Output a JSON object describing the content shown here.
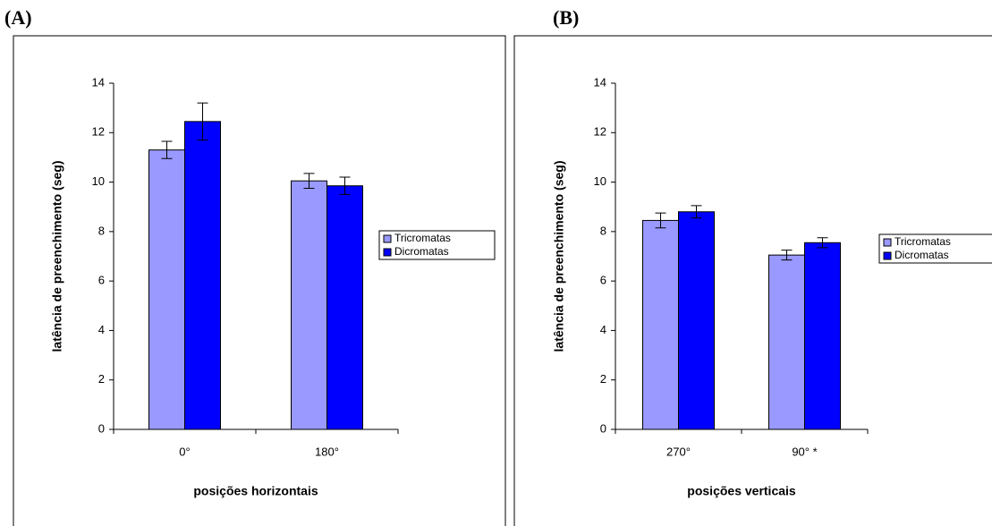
{
  "chart_data": [
    {
      "type": "bar",
      "panel": "(A)",
      "categories": [
        "0°",
        "180°"
      ],
      "xlabel": "posições horizontais",
      "ylabel": "latência de preenchimento (seg)",
      "series": [
        {
          "name": "Tricromatas",
          "color": "#9999ff",
          "values": [
            11.3,
            10.05
          ],
          "errors": [
            0.35,
            0.3
          ]
        },
        {
          "name": "Dicromatas",
          "color": "#0000ff",
          "values": [
            12.45,
            9.85
          ],
          "errors": [
            0.75,
            0.35
          ]
        }
      ],
      "ylim": [
        0,
        14
      ],
      "yticks": [
        0,
        2,
        4,
        6,
        8,
        10,
        12,
        14
      ],
      "legend": "right"
    },
    {
      "type": "bar",
      "panel": "(B)",
      "categories": [
        "270°",
        "90° *"
      ],
      "xlabel": "posições verticais",
      "ylabel": "latência de preenchimento (seg)",
      "series": [
        {
          "name": "Tricromatas",
          "color": "#9999ff",
          "values": [
            8.45,
            7.05
          ],
          "errors": [
            0.3,
            0.2
          ]
        },
        {
          "name": "Dicromatas",
          "color": "#0000ff",
          "values": [
            8.8,
            7.55
          ],
          "errors": [
            0.25,
            0.2
          ]
        }
      ],
      "ylim": [
        0,
        14
      ],
      "yticks": [
        0,
        2,
        4,
        6,
        8,
        10,
        12,
        14
      ],
      "legend": "right"
    }
  ]
}
